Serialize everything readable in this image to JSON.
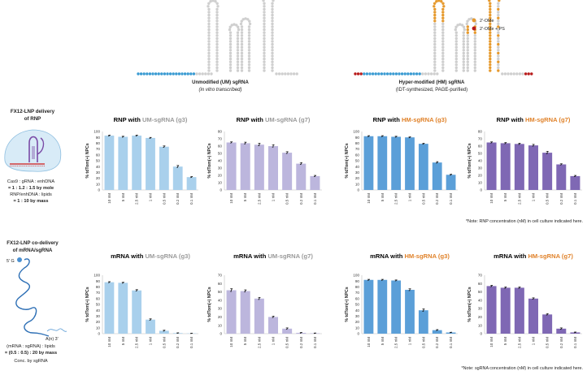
{
  "colors": {
    "um_text": "#9a9a9a",
    "hm_text": "#e0822a",
    "um_blue": "#a9d0ec",
    "um_purple": "#bcb6dd",
    "hm_blue": "#5b9fd8",
    "hm_purple": "#7f68b4",
    "linker": "#3a9bd2",
    "nucleotide": "#cfcfcf",
    "ome": "#e69a2e",
    "ome_ps": "#b81b1b"
  },
  "schematic": {
    "um_caption_main": "Unmodified (UM) sgRNA",
    "um_caption_sub": "(in vitro transcribed)",
    "hm_caption_main": "Hyper-modified (HM) sgRNA",
    "hm_caption_sub": "(IDT-synthesized, PAGE-purified)",
    "legend_ome": "2'-OMe",
    "legend_ome_ps": "2'-OMe + PS"
  },
  "row1": {
    "title_line1": "FX12-LNP delivery",
    "title_line2": "of RNP",
    "ratio_line1": "Cas9 : gRNA : enhDNA",
    "ratio_line2": "= 1 : 1.2 : 1.5 by mole",
    "ratio_line3": "RNP/enhDNA : lipids",
    "ratio_line4": "= 1 : 10 by mass",
    "note": "*Note: RNP concentration (nM) in cell culture indicated here."
  },
  "row2": {
    "title_line1": "FX12-LNP co-delivery",
    "title_line2": "of mRNA/sgRNA",
    "ratio_line1": "(mRNA : sgRNA) : lipids",
    "ratio_line2": "= (0.5 : 0.5) : 20 by mass",
    "ratio_line3": "Conc. by sgRNA",
    "label_5cap": "5' G",
    "label_3tail": "A(n) 3'",
    "note": "*Note: sgRNA concentration (nM) in cell culture indicated here."
  },
  "chart_data": [
    {
      "type": "bar",
      "title_prefix": "RNP with ",
      "title_suffix": "UM-sgRNA (g3)",
      "suffix_style": "um",
      "color": "um_blue",
      "ylabel": "% tdTom(+) NPCs",
      "ylim": [
        0,
        100
      ],
      "yticks": [
        0,
        10,
        20,
        30,
        40,
        50,
        60,
        70,
        80,
        90,
        100
      ],
      "categories": [
        "10 nM",
        "5 nM",
        "2.5 nM",
        "1 nM",
        "0.5 nM",
        "0.2 nM",
        "0.1 nM"
      ],
      "values": [
        93,
        91,
        93,
        89,
        74,
        40,
        22
      ],
      "errors": [
        1,
        1,
        1,
        1,
        1.5,
        2,
        1
      ]
    },
    {
      "type": "bar",
      "title_prefix": "RNP with ",
      "title_suffix": "UM-sgRNA (g7)",
      "suffix_style": "um",
      "color": "um_purple",
      "ylabel": "% tdTom(+) NPCs",
      "ylim": [
        0,
        80
      ],
      "yticks": [
        0,
        10,
        20,
        30,
        40,
        50,
        60,
        70,
        80
      ],
      "categories": [
        "10 nM",
        "5 nM",
        "2.5 nM",
        "1 nM",
        "0.5 nM",
        "0.2 nM",
        "0.1 nM"
      ],
      "values": [
        65,
        64,
        62,
        60,
        51,
        36,
        19
      ],
      "errors": [
        1,
        1.5,
        2,
        2,
        1.5,
        1.5,
        1
      ]
    },
    {
      "type": "bar",
      "title_prefix": "RNP with ",
      "title_suffix": "HM-sgRNA (g3)",
      "suffix_style": "hm",
      "color": "hm_blue",
      "ylabel": "% tdTom(+) NPCs",
      "ylim": [
        0,
        100
      ],
      "yticks": [
        0,
        10,
        20,
        30,
        40,
        50,
        60,
        70,
        80,
        90,
        100
      ],
      "categories": [
        "10 nM",
        "5 nM",
        "2.5 nM",
        "1 nM",
        "0.5 nM",
        "0.2 nM",
        "0.1 nM"
      ],
      "values": [
        92,
        92,
        91,
        90,
        79,
        47,
        26
      ],
      "errors": [
        1,
        1,
        1,
        1,
        1,
        1.5,
        1
      ]
    },
    {
      "type": "bar",
      "title_prefix": "RNP with ",
      "title_suffix": "HM-sgRNA (g7)",
      "suffix_style": "hm",
      "color": "hm_purple",
      "ylabel": "% tdTom(+) NPCs",
      "ylim": [
        0,
        80
      ],
      "yticks": [
        0,
        10,
        20,
        30,
        40,
        50,
        60,
        70,
        80
      ],
      "categories": [
        "10 nM",
        "5 nM",
        "2.5 nM",
        "1 nM",
        "0.5 nM",
        "0.2 nM",
        "0.1 nM"
      ],
      "values": [
        65,
        64,
        63,
        61,
        51,
        35,
        19
      ],
      "errors": [
        1,
        1,
        1,
        1.5,
        2,
        1,
        1
      ]
    },
    {
      "type": "bar",
      "title_prefix": "mRNA with ",
      "title_suffix": "UM-sgRNA (g3)",
      "suffix_style": "um",
      "color": "um_blue",
      "ylabel": "% tdTom(+) NPCs",
      "ylim": [
        0,
        100
      ],
      "yticks": [
        0,
        10,
        20,
        30,
        40,
        50,
        60,
        70,
        80,
        90,
        100
      ],
      "categories": [
        "10 nM",
        "5 nM",
        "2.5 nM",
        "1 nM",
        "0.5 nM",
        "0.2 nM",
        "0.1 nM"
      ],
      "values": [
        88,
        87,
        74,
        24,
        5,
        1,
        0.5
      ],
      "errors": [
        1,
        1,
        1.5,
        1.5,
        1,
        0.5,
        0.3
      ]
    },
    {
      "type": "bar",
      "title_prefix": "mRNA with ",
      "title_suffix": "UM-sgRNA (g7)",
      "suffix_style": "um",
      "color": "um_purple",
      "ylabel": "% tdTom(+) NPCs",
      "ylim": [
        0,
        70
      ],
      "yticks": [
        0,
        10,
        20,
        30,
        40,
        50,
        60,
        70
      ],
      "categories": [
        "10 nM",
        "5 nM",
        "2.5 nM",
        "1 nM",
        "0.5 nM",
        "0.2 nM",
        "0.1 nM"
      ],
      "values": [
        52,
        51,
        42,
        20,
        6,
        1,
        0.5
      ],
      "errors": [
        2,
        1.5,
        1.5,
        1,
        1,
        0.5,
        0.3
      ]
    },
    {
      "type": "bar",
      "title_prefix": "mRNA with ",
      "title_suffix": "HM-sgRNA (g3)",
      "suffix_style": "hm",
      "color": "hm_blue",
      "ylabel": "% tdTom(+) NPCs",
      "ylim": [
        0,
        100
      ],
      "yticks": [
        0,
        10,
        20,
        30,
        40,
        50,
        60,
        70,
        80,
        90,
        100
      ],
      "categories": [
        "10 nM",
        "5 nM",
        "2.5 nM",
        "1 nM",
        "0.5 nM",
        "0.2 nM",
        "0.1 nM"
      ],
      "values": [
        92,
        92,
        91,
        75,
        40,
        6,
        2
      ],
      "errors": [
        1,
        1,
        1,
        2,
        2.5,
        1,
        0.5
      ]
    },
    {
      "type": "bar",
      "title_prefix": "mRNA with ",
      "title_suffix": "HM-sgRNA (g7)",
      "suffix_style": "hm",
      "color": "hm_purple",
      "ylabel": "% tdTom(+) NPCs",
      "ylim": [
        0,
        70
      ],
      "yticks": [
        0,
        10,
        20,
        30,
        40,
        50,
        60,
        70
      ],
      "categories": [
        "10 nM",
        "5 nM",
        "2.5 nM",
        "1 nM",
        "0.5 nM",
        "0.2 nM",
        "0.1 nM"
      ],
      "values": [
        57,
        55,
        55,
        42,
        23,
        6,
        1.5
      ],
      "errors": [
        1,
        1,
        1,
        1,
        1,
        1,
        0.5
      ]
    }
  ]
}
